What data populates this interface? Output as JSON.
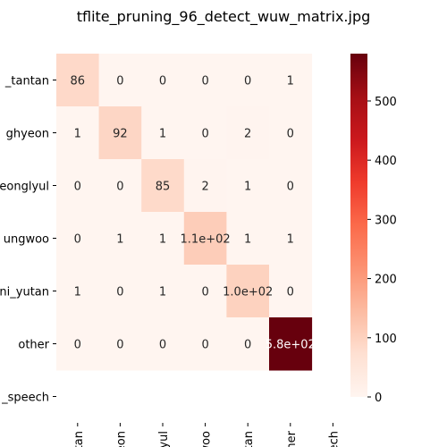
{
  "chart_data": {
    "type": "heatmap",
    "title": "tflite_pruning_96_detect_wuw_matrix.jpg",
    "row_labels": [
      "_tantan",
      "ghyeon",
      "eonglyul",
      "ungwoo",
      "ni_yutan",
      "other",
      "_speech"
    ],
    "col_labels": [
      "tantan",
      "hyeon",
      "nglyul",
      "ngwoo",
      "yutan",
      "other",
      "peech"
    ],
    "values": [
      [
        86,
        0,
        0,
        0,
        0,
        1,
        null
      ],
      [
        1,
        92,
        1,
        0,
        2,
        0,
        null
      ],
      [
        0,
        0,
        85,
        2,
        1,
        0,
        null
      ],
      [
        0,
        1,
        1,
        110,
        1,
        1,
        null
      ],
      [
        1,
        0,
        1,
        0,
        100,
        0,
        null
      ],
      [
        0,
        0,
        0,
        0,
        0,
        580,
        null
      ],
      [
        null,
        null,
        null,
        null,
        null,
        null,
        null
      ]
    ],
    "annotations": [
      [
        "86",
        "0",
        "0",
        "0",
        "0",
        "1",
        ""
      ],
      [
        "1",
        "92",
        "1",
        "0",
        "2",
        "0",
        ""
      ],
      [
        "0",
        "0",
        "85",
        "2",
        "1",
        "0",
        ""
      ],
      [
        "0",
        "1",
        "1",
        "1.1e+02",
        "1",
        "1",
        ""
      ],
      [
        "1",
        "0",
        "1",
        "0",
        "1.0e+02",
        "0",
        ""
      ],
      [
        "0",
        "0",
        "0",
        "0",
        "0",
        "5.8e+02",
        ""
      ],
      [
        "",
        "",
        "",
        "",
        "",
        "",
        ""
      ]
    ],
    "colorbar": {
      "min": 0,
      "max": 580,
      "ticks": [
        0,
        100,
        200,
        300,
        400,
        500
      ],
      "colormap": "Reds"
    },
    "xlabel": "",
    "ylabel": ""
  }
}
